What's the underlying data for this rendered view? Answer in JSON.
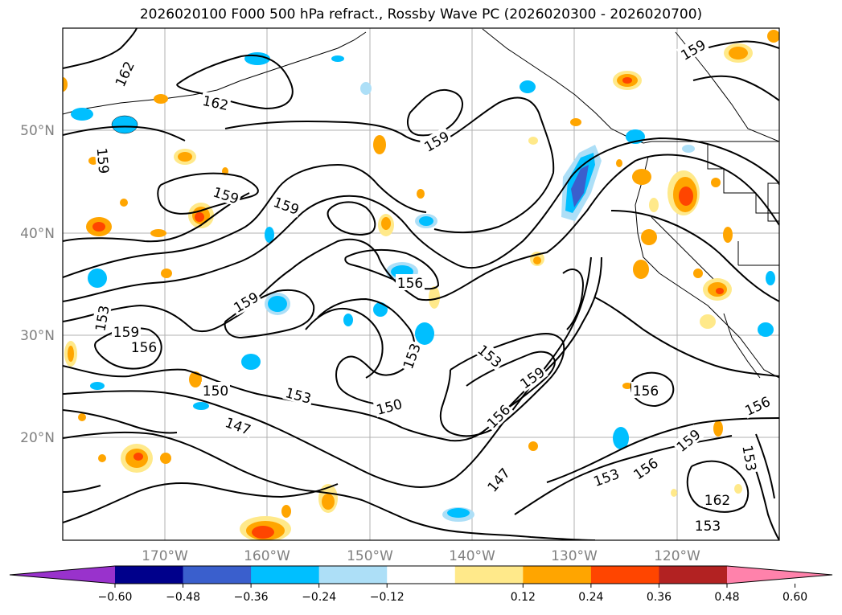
{
  "title": "2026020100 F000 500 hPa refract., Rossby Wave PC (2026020300 - 2026020700)",
  "lat_labels": [
    "50°N",
    "40°N",
    "30°N",
    "20°N"
  ],
  "lon_labels": [
    "170°W",
    "160°W",
    "150°W",
    "140°W",
    "130°W",
    "120°W"
  ],
  "contour_labels": [
    {
      "text": "162",
      "rot": -65
    },
    {
      "text": "162",
      "rot": 12
    },
    {
      "text": "159",
      "rot": 18
    },
    {
      "text": "159",
      "rot": 20
    },
    {
      "text": "159",
      "rot": 85
    },
    {
      "text": "159",
      "rot": -30
    },
    {
      "text": "159",
      "rot": -30
    },
    {
      "text": "159",
      "rot": -30
    },
    {
      "text": "156",
      "rot": 0
    },
    {
      "text": "153",
      "rot": -80
    },
    {
      "text": "159",
      "rot": 0
    },
    {
      "text": "156",
      "rot": 0
    },
    {
      "text": "150",
      "rot": 0
    },
    {
      "text": "153",
      "rot": 15
    },
    {
      "text": "147",
      "rot": 20
    },
    {
      "text": "150",
      "rot": -15
    },
    {
      "text": "153",
      "rot": -70
    },
    {
      "text": "153",
      "rot": 40
    },
    {
      "text": "159",
      "rot": -35
    },
    {
      "text": "156",
      "rot": -45
    },
    {
      "text": "147",
      "rot": -50
    },
    {
      "text": "153",
      "rot": -20
    },
    {
      "text": "156",
      "rot": -35
    },
    {
      "text": "159",
      "rot": -40
    },
    {
      "text": "156",
      "rot": 0
    },
    {
      "text": "156",
      "rot": -25
    },
    {
      "text": "153",
      "rot": 80
    },
    {
      "text": "162",
      "rot": 0
    },
    {
      "text": "153",
      "rot": 0
    }
  ],
  "colorbar": {
    "ticks": [
      "−0.60",
      "−0.48",
      "−0.36",
      "−0.24",
      "−0.12",
      "0.12",
      "0.24",
      "0.36",
      "0.48",
      "0.60"
    ],
    "colors": [
      "#9932CC",
      "#00008B",
      "#3A5FCD",
      "#00BFFF",
      "#ADDFF7",
      "#FFFFFF",
      "#FFE98A",
      "#FFA500",
      "#FF4500",
      "#B22222",
      "#FF82AB"
    ]
  },
  "fill_colors": {
    "light_blue": "#ADDFF7",
    "blue": "#00BFFF",
    "mid_blue": "#3A5FCD",
    "light_yellow": "#FFE98A",
    "orange": "#FFA500",
    "red_orange": "#FF4500"
  }
}
